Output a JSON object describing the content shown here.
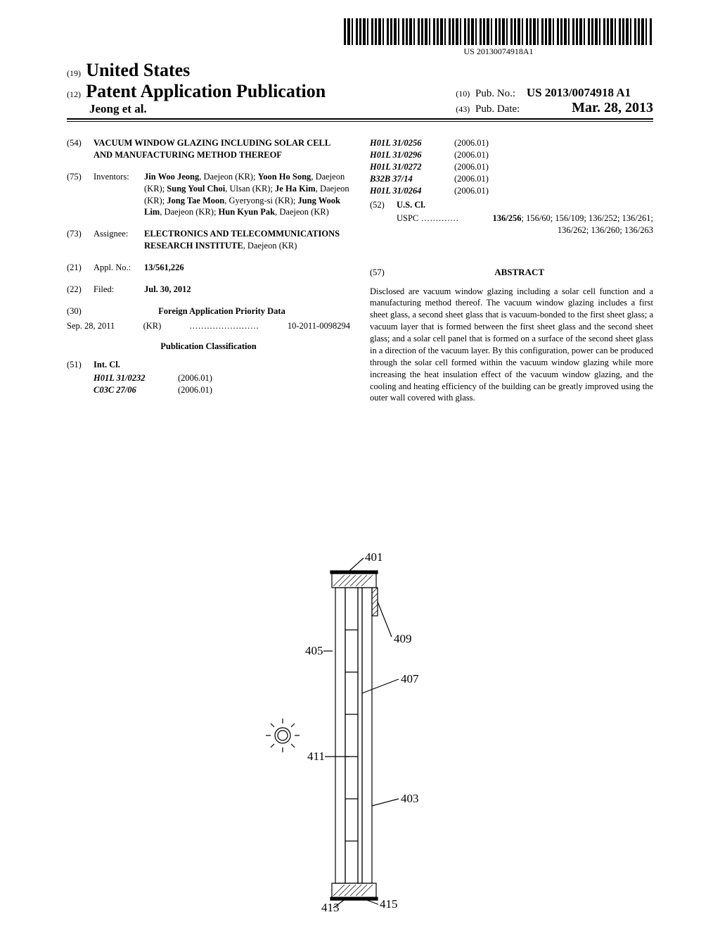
{
  "barcode_text": "US 20130074918A1",
  "header": {
    "code19": "(19)",
    "country": "United States",
    "code12": "(12)",
    "pub_title": "Patent Application Publication",
    "author_line": "Jeong et al.",
    "code10": "(10)",
    "pubno_label": "Pub. No.:",
    "pubno_value": "US 2013/0074918 A1",
    "code43": "(43)",
    "pubdate_label": "Pub. Date:",
    "pubdate_value": "Mar. 28, 2013"
  },
  "fields": {
    "f54": {
      "code": "(54)",
      "value": "VACUUM WINDOW GLAZING INCLUDING SOLAR CELL AND MANUFACTURING METHOD THEREOF"
    },
    "f75": {
      "code": "(75)",
      "label": "Inventors:",
      "value_html": "<b>Jin Woo Jeong</b>, Daejeon (KR); <b>Yoon Ho Song</b>, Daejeon (KR); <b>Sung Youl Choi</b>, Ulsan (KR); <b>Je Ha Kim</b>, Daejeon (KR); <b>Jong Tae Moon</b>, Gyeryong-si (KR); <b>Jung Wook Lim</b>, Daejeon (KR); <b>Hun Kyun Pak</b>, Daejeon (KR)"
    },
    "f73": {
      "code": "(73)",
      "label": "Assignee:",
      "value": "ELECTRONICS AND TELECOMMUNICATIONS RESEARCH INSTITUTE",
      "suffix": ", Daejeon (KR)"
    },
    "f21": {
      "code": "(21)",
      "label": "Appl. No.:",
      "value": "13/561,226"
    },
    "f22": {
      "code": "(22)",
      "label": "Filed:",
      "value": "Jul. 30, 2012"
    },
    "f30": {
      "code": "(30)",
      "heading": "Foreign Application Priority Data"
    },
    "priority": {
      "date": "Sep. 28, 2011",
      "country": "(KR)",
      "number": "10-2011-0098294"
    },
    "pubclass_heading": "Publication Classification",
    "f51": {
      "code": "(51)",
      "label": "Int. Cl."
    },
    "intcl_left": [
      {
        "code": "H01L 31/0232",
        "year": "(2006.01)"
      },
      {
        "code": "C03C 27/06",
        "year": "(2006.01)"
      }
    ],
    "intcl_right": [
      {
        "code": "H01L 31/0256",
        "year": "(2006.01)"
      },
      {
        "code": "H01L 31/0296",
        "year": "(2006.01)"
      },
      {
        "code": "H01L 31/0272",
        "year": "(2006.01)"
      },
      {
        "code": "B32B 37/14",
        "year": "(2006.01)"
      },
      {
        "code": "H01L 31/0264",
        "year": "(2006.01)"
      }
    ],
    "f52": {
      "code": "(52)",
      "label": "U.S. Cl.",
      "uspc_label": "USPC",
      "uspc_value": "136/256; 156/60; 156/109; 136/252; 136/261; 136/262; 136/260; 136/263"
    },
    "f57": {
      "code": "(57)",
      "heading": "ABSTRACT"
    },
    "abstract": "Disclosed are vacuum window glazing including a solar cell function and a manufacturing method thereof. The vacuum window glazing includes a first sheet glass, a second sheet glass that is vacuum-bonded to the first sheet glass; a vacuum layer that is formed between the first sheet glass and the second sheet glass; and a solar cell panel that is formed on a surface of the second sheet glass in a direction of the vacuum layer. By this configuration, power can be produced through the solar cell formed within the vacuum window glazing while more increasing the heat insulation effect of the vacuum window glazing, and the cooling and heating efficiency of the building can be greatly improved using the outer wall covered with glass."
  },
  "figure": {
    "labels": {
      "401": "401",
      "403": "403",
      "405": "405",
      "407": "407",
      "409": "409",
      "411": "411",
      "413": "413",
      "415": "415"
    },
    "colors": {
      "stroke": "#000000",
      "hatch": "#000000"
    }
  }
}
